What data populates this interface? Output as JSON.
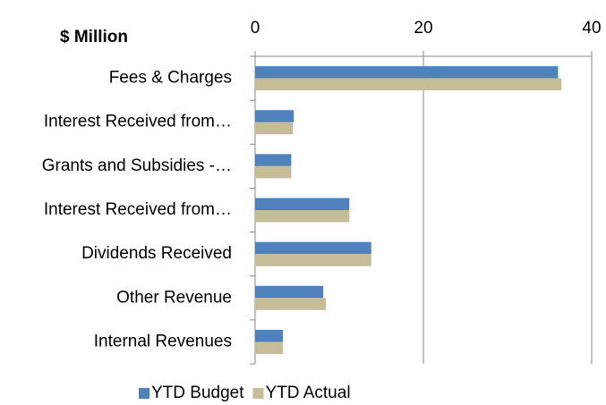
{
  "chart_data": {
    "type": "hbar",
    "y_label": "$ Million",
    "categories": [
      "Fees & Charges",
      "Interest Received from…",
      "Grants and Subsidies -…",
      "Interest Received from…",
      "Dividends Received",
      "Other Revenue",
      "Internal Revenues"
    ],
    "series": [
      {
        "name": "YTD Budget",
        "color": "#4f81bd",
        "values": [
          36.0,
          4.6,
          4.3,
          11.2,
          13.8,
          8.1,
          3.3
        ]
      },
      {
        "name": "YTD Actual",
        "color": "#c4bd97",
        "values": [
          36.4,
          4.5,
          4.3,
          11.2,
          13.8,
          8.4,
          3.3
        ]
      }
    ],
    "xlim": [
      0,
      40
    ],
    "xticks": [
      0,
      20,
      40
    ],
    "grid": true,
    "legend": "bottom"
  }
}
